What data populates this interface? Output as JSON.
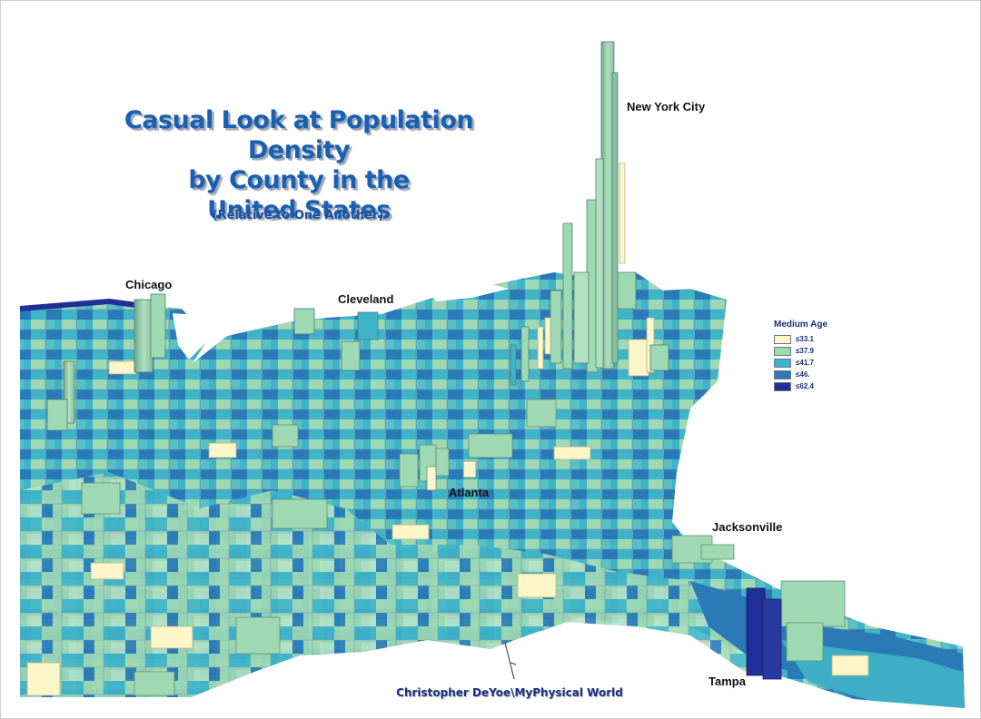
{
  "title": {
    "line1": "Casual Look at Population Density",
    "line2": "by County in the",
    "line3": "United States"
  },
  "subtitle": "(Relative to One Another)",
  "cities": {
    "new_york": "New York City",
    "chicago": "Chicago",
    "cleveland": "Cleveland",
    "atlanta": "Atlanta",
    "jacksonville": "Jacksonville",
    "tampa": "Tampa"
  },
  "legend": {
    "title": "Medium Age",
    "items": [
      {
        "label": "≤33.1",
        "color": "#fdf6c8"
      },
      {
        "label": "≤37.9",
        "color": "#9fd9b4"
      },
      {
        "label": "≤41.7",
        "color": "#3fb4c8"
      },
      {
        "label": "≤46.",
        "color": "#2a7ab8"
      },
      {
        "label": "≤62.4",
        "color": "#1f2f95"
      }
    ]
  },
  "credit": "Christopher DeYoe\\MyPhysical World"
}
